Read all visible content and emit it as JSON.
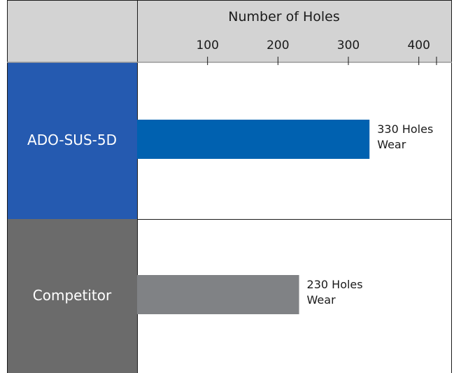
{
  "chart_data": {
    "type": "bar",
    "orientation": "horizontal",
    "title": "",
    "xlabel": "Number of Holes",
    "ylabel": "",
    "xlim": [
      0,
      447
    ],
    "xticks": [
      100,
      200,
      300,
      400
    ],
    "grid": false,
    "legend": "none",
    "categories": [
      "ADO-SUS-5D",
      "Competitor"
    ],
    "values": [
      330,
      230
    ],
    "data_labels": [
      [
        "330 Holes",
        "Wear"
      ],
      [
        "230 Holes",
        "Wear"
      ]
    ],
    "colors": {
      "bars": [
        "#0061b0",
        "#808285"
      ],
      "category_backgrounds": [
        "#255ab0",
        "#6b6b6b"
      ],
      "header_background": "#d3d3d3",
      "frame": "#1a1a1a",
      "header_divider": "#9a9a9a"
    }
  }
}
